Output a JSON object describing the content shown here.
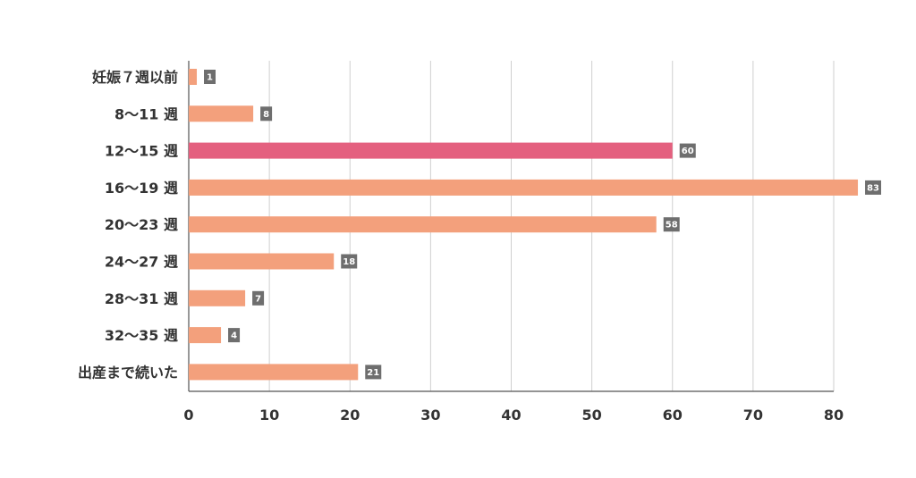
{
  "chart_data": {
    "type": "bar",
    "orientation": "horizontal",
    "categories": [
      "妊娠７週以前",
      "8〜11 週",
      "12〜15 週",
      "16〜19 週",
      "20〜23 週",
      "24〜27 週",
      "28〜31 週",
      "32〜35 週",
      "出産まで続いた"
    ],
    "values": [
      1,
      8,
      60,
      83,
      58,
      18,
      7,
      4,
      21
    ],
    "data_labels": [
      "1",
      "8",
      "60",
      "83",
      "58",
      "18",
      "7",
      "4",
      "21"
    ],
    "highlight_index": 2,
    "xlim": [
      0,
      80
    ],
    "xticks": [
      0,
      10,
      20,
      30,
      40,
      50,
      60,
      70,
      80
    ],
    "xtick_labels": [
      "0",
      "10",
      "20",
      "30",
      "40",
      "50",
      "60",
      "70",
      "80"
    ],
    "grid": "vertical",
    "legend": "none",
    "colors": {
      "bar": "#f3a07c",
      "highlight": "#e4607f",
      "label_box": "#6e6e6e",
      "grid": "#cfcfcf",
      "axis": "#555555",
      "text": "#333333"
    }
  }
}
